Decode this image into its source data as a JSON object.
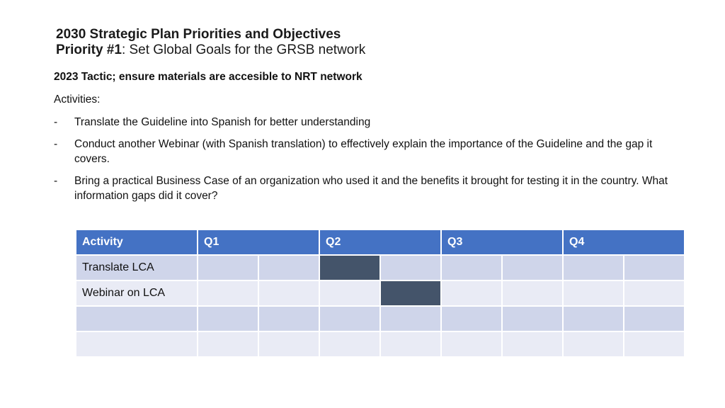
{
  "title": {
    "line1": "2030 Strategic Plan Priorities and Objectives",
    "priority_label": "Priority  #1",
    "priority_text": ": Set Global Goals for the GRSB network"
  },
  "tactic": "2023 Tactic; ensure materials are accesible to NRT network",
  "activities_heading": "Activities:",
  "activities": [
    {
      "dash": "-",
      "text": "Translate the Guideline into Spanish for better understanding"
    },
    {
      "dash": "-",
      "text": "Conduct another Webinar (with Spanish translation) to effectively explain the importance of the Guideline and the gap it covers."
    },
    {
      "dash": "-",
      "text": "Bring a practical Business Case of an organization who used it and the benefits it brought for testing it in the country. What information gaps did it cover?"
    }
  ],
  "colors": {
    "header_bg": "#4472c4",
    "row_odd": "#cfd5ea",
    "row_even": "#e9ebf5",
    "filled_cell": "#44546a"
  },
  "table": {
    "headers": [
      "Activity",
      "Q1",
      "Q2",
      "Q3",
      "Q4"
    ],
    "rows": [
      {
        "activity": "Translate LCA",
        "filled_subperiod": 3
      },
      {
        "activity": "Webinar on LCA",
        "filled_subperiod": 4
      },
      {
        "activity": "",
        "filled_subperiod": null
      },
      {
        "activity": "",
        "filled_subperiod": null
      }
    ]
  }
}
